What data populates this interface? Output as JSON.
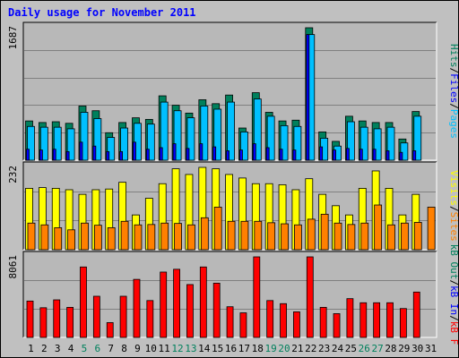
{
  "title": "Daily usage for November 2011",
  "colors": {
    "frame_bg": "#c0c0c0",
    "plot_bg": "#b8b8b8",
    "grid": "#808080",
    "title": "#0000ff",
    "hits": "#00805c",
    "files": "#0000ff",
    "pages": "#00c0ff",
    "visits": "#ffff00",
    "sites": "#ff8000",
    "kbf": "#ff0000",
    "kbin": "#0000ff",
    "kbout": "#00805c",
    "weekend_label": "#00805c",
    "weekday_label": "#000000"
  },
  "panels": {
    "top": {
      "max_label": "1687",
      "legend": [
        {
          "text": "Hits",
          "color_key": "hits"
        },
        {
          "text": "/",
          "color_key": "weekday_label"
        },
        {
          "text": "Files",
          "color_key": "files"
        },
        {
          "text": "/",
          "color_key": "weekday_label"
        },
        {
          "text": "Pages",
          "color_key": "pages"
        }
      ]
    },
    "mid": {
      "max_label": "232",
      "legend": [
        {
          "text": "Visits",
          "color_key": "visits"
        },
        {
          "text": "/",
          "color_key": "weekday_label"
        },
        {
          "text": "Sites",
          "color_key": "sites"
        }
      ]
    },
    "bot": {
      "max_label": "8061",
      "legend": [
        {
          "text": "kB Out",
          "color_key": "kbout"
        },
        {
          "text": "/",
          "color_key": "weekday_label"
        },
        {
          "text": "kB In",
          "color_key": "kbin"
        },
        {
          "text": "/",
          "color_key": "weekday_label"
        },
        {
          "text": "kB F",
          "color_key": "kbf"
        }
      ]
    }
  },
  "chart_data": [
    {
      "type": "bar",
      "title": "Daily usage for November 2011",
      "categories": [
        "1",
        "2",
        "3",
        "4",
        "5",
        "6",
        "7",
        "8",
        "9",
        "10",
        "11",
        "12",
        "13",
        "14",
        "15",
        "16",
        "17",
        "18",
        "19",
        "20",
        "21",
        "22",
        "23",
        "24",
        "25",
        "26",
        "27",
        "28",
        "29",
        "30",
        "31"
      ],
      "weekend_days": [
        "5",
        "6",
        "12",
        "13",
        "19",
        "20",
        "26",
        "27"
      ],
      "ylim": [
        0,
        1687
      ],
      "max_label": "1687",
      "series": [
        {
          "name": "Hits",
          "values": [
            500,
            480,
            490,
            470,
            690,
            630,
            350,
            480,
            540,
            520,
            820,
            700,
            600,
            770,
            720,
            830,
            410,
            860,
            610,
            500,
            510,
            1687,
            360,
            240,
            560,
            500,
            480,
            480,
            270,
            620,
            0
          ]
        },
        {
          "name": "Files",
          "values": [
            140,
            130,
            140,
            110,
            230,
            180,
            110,
            110,
            230,
            140,
            160,
            210,
            150,
            210,
            170,
            120,
            130,
            210,
            160,
            140,
            130,
            1600,
            170,
            130,
            150,
            140,
            140,
            120,
            100,
            120,
            0
          ]
        },
        {
          "name": "Pages",
          "values": [
            430,
            420,
            420,
            400,
            610,
            530,
            290,
            410,
            470,
            460,
            740,
            630,
            540,
            690,
            650,
            740,
            360,
            780,
            560,
            440,
            430,
            1600,
            280,
            180,
            490,
            420,
            400,
            420,
            220,
            560,
            0
          ]
        }
      ]
    },
    {
      "type": "bar",
      "ylim": [
        0,
        232
      ],
      "max_label": "232",
      "series": [
        {
          "name": "Visits",
          "values": [
            173,
            175,
            173,
            169,
            156,
            169,
            171,
            190,
            98,
            145,
            186,
            228,
            212,
            232,
            228,
            212,
            202,
            186,
            186,
            183,
            169,
            200,
            156,
            124,
            98,
            173,
            222,
            173,
            98,
            156,
            0
          ]
        },
        {
          "name": "Sites",
          "values": [
            75,
            70,
            62,
            56,
            75,
            69,
            62,
            80,
            70,
            71,
            75,
            74,
            70,
            90,
            120,
            80,
            80,
            80,
            76,
            73,
            70,
            86,
            100,
            75,
            71,
            75,
            126,
            70,
            75,
            77,
            120
          ]
        }
      ]
    },
    {
      "type": "bar",
      "ylim": [
        0,
        8061
      ],
      "max_label": "8061",
      "series": [
        {
          "name": "kB F",
          "values": [
            3640,
            2970,
            3760,
            3010,
            7050,
            4120,
            1480,
            4120,
            5810,
            3690,
            6540,
            6820,
            5290,
            7050,
            5430,
            3070,
            2460,
            8061,
            3690,
            3380,
            2560,
            8061,
            3010,
            2380,
            3880,
            3470,
            3470,
            3470,
            2890,
            4540,
            0
          ]
        }
      ]
    }
  ]
}
